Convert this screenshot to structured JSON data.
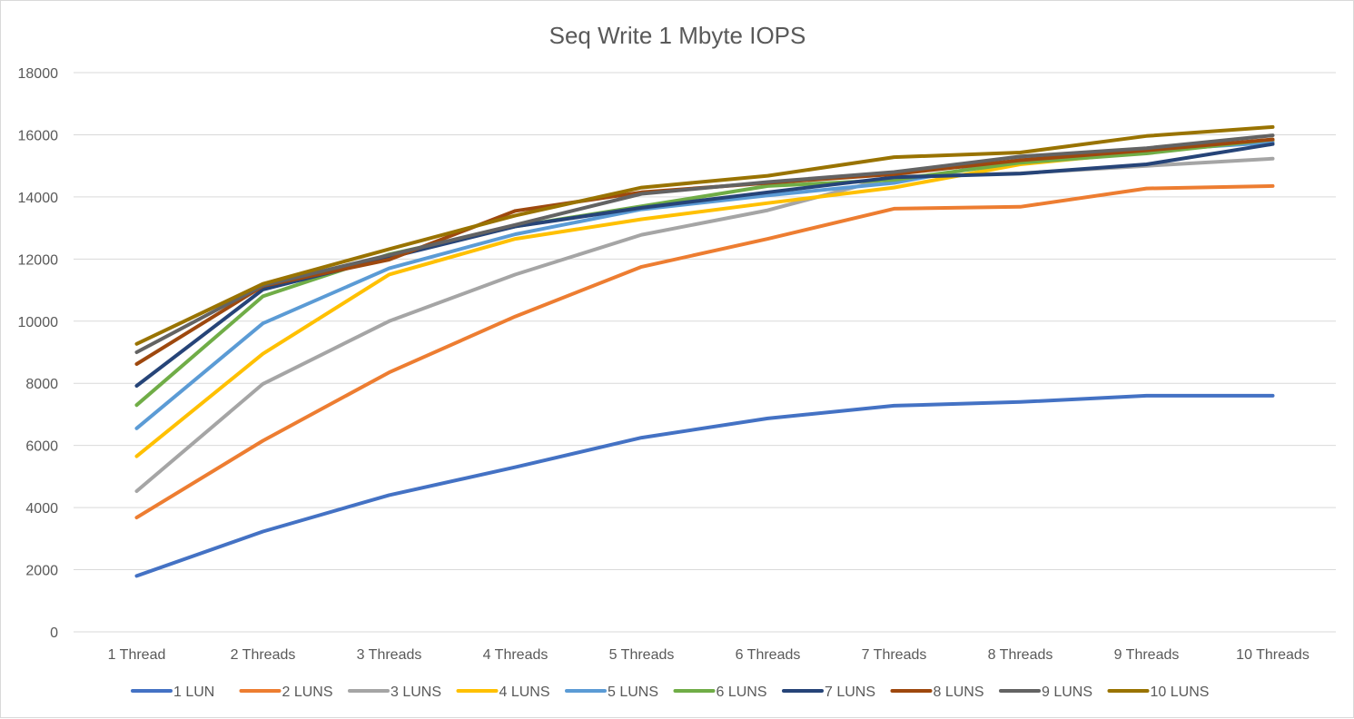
{
  "chart_data": {
    "type": "line",
    "title": "Seq Write 1 Mbyte IOPS",
    "xlabel": "",
    "ylabel": "",
    "ylim": [
      0,
      18000
    ],
    "yticks": [
      0,
      2000,
      4000,
      6000,
      8000,
      10000,
      12000,
      14000,
      16000,
      18000
    ],
    "grid": true,
    "legend_position": "bottom",
    "categories": [
      "1 Thread",
      "2 Threads",
      "3 Threads",
      "4 Threads",
      "5 Threads",
      "6 Threads",
      "7 Threads",
      "8 Threads",
      "9 Threads",
      "10 Threads"
    ],
    "series": [
      {
        "name": "1 LUN",
        "color": "#4472C4",
        "values": [
          1800,
          3230,
          4400,
          5300,
          6250,
          6870,
          7280,
          7400,
          7600,
          7600
        ]
      },
      {
        "name": "2 LUNS",
        "color": "#ED7D31",
        "values": [
          3680,
          6150,
          8350,
          10150,
          11750,
          12650,
          13620,
          13680,
          14270,
          14350
        ]
      },
      {
        "name": "3 LUNS",
        "color": "#A5A5A5",
        "values": [
          4530,
          7980,
          10000,
          11500,
          12780,
          13570,
          14650,
          14760,
          15000,
          15230
        ]
      },
      {
        "name": "4 LUNS",
        "color": "#FFC000",
        "values": [
          5650,
          8950,
          11500,
          12650,
          13280,
          13800,
          14300,
          15050,
          15450,
          15800
        ]
      },
      {
        "name": "5 LUNS",
        "color": "#5B9BD5",
        "values": [
          6550,
          9930,
          11700,
          12800,
          13600,
          14050,
          14450,
          15200,
          15500,
          15750
        ]
      },
      {
        "name": "6 LUNS",
        "color": "#70AD47",
        "values": [
          7300,
          10800,
          12150,
          13050,
          13700,
          14350,
          14550,
          15100,
          15400,
          15850
        ]
      },
      {
        "name": "7 LUNS",
        "color": "#264478",
        "values": [
          7920,
          11020,
          12050,
          13050,
          13650,
          14150,
          14630,
          14750,
          15050,
          15700
        ]
      },
      {
        "name": "8 LUNS",
        "color": "#9E480E",
        "values": [
          8620,
          11130,
          11980,
          13550,
          14150,
          14450,
          14730,
          15180,
          15500,
          15850
        ]
      },
      {
        "name": "9 LUNS",
        "color": "#636363",
        "values": [
          9000,
          11150,
          12130,
          13100,
          14100,
          14480,
          14800,
          15300,
          15570,
          15980
        ]
      },
      {
        "name": "10 LUNS",
        "color": "#997300",
        "values": [
          9270,
          11200,
          12320,
          13400,
          14300,
          14680,
          15280,
          15430,
          15960,
          16250
        ]
      }
    ]
  }
}
